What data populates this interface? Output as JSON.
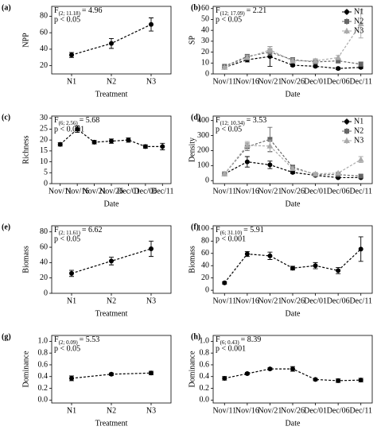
{
  "chart_data": [
    {
      "type": "line",
      "panel": "(a)",
      "ylabel": "NPP",
      "xlabel": "Treatment",
      "annotation": {
        "f": "F",
        "df": "(2; 11.18)",
        "eq": "= 4.96",
        "p": "p < 0.05"
      },
      "categories": [
        "N1",
        "N2",
        "N3"
      ],
      "values": [
        33,
        47,
        70
      ],
      "errors": [
        3,
        6,
        8
      ],
      "color": "#000000",
      "marker": "circle",
      "ylim": [
        10,
        92
      ],
      "yticks": [
        20,
        40,
        60,
        80
      ]
    },
    {
      "type": "line",
      "panel": "(b)",
      "ylabel": "SP",
      "xlabel": "Date",
      "annotation": {
        "f": "F",
        "df": "(12; 17.09)",
        "eq": "= 2.21",
        "p": "p < 0.05"
      },
      "categories": [
        "Nov/11",
        "Nov/16",
        "Nov/21",
        "Nov/26",
        "Dec/01",
        "Dec/06",
        "Dec/11"
      ],
      "series": [
        {
          "name": "N1",
          "color": "#000000",
          "marker": "circle",
          "values": [
            6,
            13,
            16,
            8,
            7,
            5,
            6
          ],
          "errors": [
            1,
            2,
            9,
            1,
            1,
            1,
            1
          ]
        },
        {
          "name": "N2",
          "color": "#666666",
          "marker": "square",
          "values": [
            7,
            16,
            20,
            13,
            11,
            12,
            9
          ],
          "errors": [
            1,
            2,
            3,
            2,
            2,
            2,
            2
          ]
        },
        {
          "name": "N3",
          "color": "#aaaaaa",
          "marker": "triangle",
          "values": [
            6,
            15,
            22,
            12,
            12,
            15,
            46
          ],
          "errors": [
            1,
            2,
            3,
            2,
            2,
            2,
            13
          ]
        }
      ],
      "legend": "upper right",
      "ylim": [
        0,
        62
      ],
      "yticks": [
        0,
        10,
        20,
        30,
        40,
        50,
        60
      ]
    },
    {
      "type": "line",
      "panel": "(c)",
      "ylabel": "Richness",
      "xlabel": "Date",
      "annotation": {
        "f": "F",
        "df": "(6; 2.56)",
        "eq": "= 5.68",
        "p": "p < 0.001"
      },
      "categories": [
        "Nov/11",
        "Nov/16",
        "Nov/21",
        "Nov/26",
        "Dec/01",
        "Dec/06",
        "Dec/11"
      ],
      "values": [
        18,
        25,
        19,
        19.5,
        20,
        17,
        17
      ],
      "errors": [
        0.8,
        1.5,
        0.8,
        1,
        1,
        0.8,
        1.5
      ],
      "color": "#000000",
      "marker": "circle",
      "ylim": [
        0,
        31
      ],
      "yticks": [
        0,
        5,
        10,
        15,
        20,
        25,
        30
      ]
    },
    {
      "type": "line",
      "panel": "(d)",
      "ylabel": "Density",
      "xlabel": "Date",
      "annotation": {
        "f": "F",
        "df": "(12; 10.34)",
        "eq": "= 3.53",
        "p": "p < 0.05"
      },
      "categories": [
        "Nov/11",
        "Nov/16",
        "Nov/21",
        "Nov/26",
        "Dec/01",
        "Dec/06",
        "Dec/11"
      ],
      "series": [
        {
          "name": "N1",
          "color": "#000000",
          "marker": "circle",
          "values": [
            45,
            125,
            105,
            55,
            35,
            20,
            20
          ],
          "errors": [
            8,
            35,
            25,
            8,
            6,
            5,
            5
          ]
        },
        {
          "name": "N2",
          "color": "#666666",
          "marker": "square",
          "values": [
            45,
            225,
            275,
            90,
            40,
            40,
            30
          ],
          "errors": [
            8,
            25,
            80,
            12,
            8,
            8,
            8
          ]
        },
        {
          "name": "N3",
          "color": "#aaaaaa",
          "marker": "triangle",
          "values": [
            45,
            235,
            230,
            80,
            45,
            50,
            140
          ],
          "errors": [
            8,
            25,
            40,
            12,
            8,
            8,
            20
          ]
        }
      ],
      "legend": "upper right",
      "ylim": [
        -20,
        430
      ],
      "yticks": [
        0,
        100,
        200,
        300,
        400
      ]
    },
    {
      "type": "line",
      "panel": "(e)",
      "ylabel": "Biomass",
      "xlabel": "Treatment",
      "annotation": {
        "f": "F",
        "df": "(2; 11.61)",
        "eq": "= 6.62",
        "p": "p < 0.05"
      },
      "categories": [
        "N1",
        "N2",
        "N3"
      ],
      "values": [
        26,
        42,
        58
      ],
      "errors": [
        4,
        5,
        10
      ],
      "color": "#000000",
      "marker": "circle",
      "ylim": [
        0,
        88
      ],
      "yticks": [
        0,
        20,
        40,
        60,
        80
      ]
    },
    {
      "type": "line",
      "panel": "(f)",
      "ylabel": "Biomass",
      "xlabel": "Date",
      "annotation": {
        "f": "F",
        "df": "(6; 31.10)",
        "eq": "= 5.91",
        "p": "p < 0.001"
      },
      "categories": [
        "Nov/11",
        "Nov/16",
        "Nov/21",
        "Nov/26",
        "Dec/01",
        "Dec/06",
        "Dec/11"
      ],
      "values": [
        12,
        59,
        56,
        36,
        40,
        32,
        67
      ],
      "errors": [
        2,
        4,
        6,
        3,
        5,
        5,
        20
      ],
      "color": "#000000",
      "marker": "circle",
      "ylim": [
        -5,
        105
      ],
      "yticks": [
        0,
        20,
        40,
        60,
        80,
        100
      ]
    },
    {
      "type": "line",
      "panel": "(g)",
      "ylabel": "Dominance",
      "xlabel": "Treatment",
      "annotation": {
        "f": "F",
        "df": "(2; 0.09)",
        "eq": "= 5.53",
        "p": "p < 0.05"
      },
      "categories": [
        "N1",
        "N2",
        "N3"
      ],
      "values": [
        0.37,
        0.44,
        0.46
      ],
      "errors": [
        0.04,
        0.02,
        0.03
      ],
      "color": "#000000",
      "marker": "circle",
      "ylim": [
        -0.05,
        1.1
      ],
      "yticks": [
        {
          "value": 0,
          "label": "0.0"
        },
        0.2,
        0.4,
        0.6,
        0.8,
        {
          "value": 1,
          "label": "1.0"
        }
      ]
    },
    {
      "type": "line",
      "panel": "(h)",
      "ylabel": "Dominance",
      "xlabel": "Date",
      "annotation": {
        "f": "F",
        "df": "(6; 0.43)",
        "eq": "= 8.39",
        "p": "p < 0.001"
      },
      "categories": [
        "Nov/11",
        "Nov/16",
        "Nov/21",
        "Nov/26",
        "Dec/01",
        "Dec/06",
        "Dec/11"
      ],
      "values": [
        0.37,
        0.45,
        0.53,
        0.53,
        0.35,
        0.33,
        0.34
      ],
      "errors": [
        0.03,
        0.02,
        0.02,
        0.04,
        0.02,
        0.03,
        0.03
      ],
      "color": "#000000",
      "marker": "circle",
      "ylim": [
        -0.05,
        1.1
      ],
      "yticks": [
        {
          "value": 0,
          "label": "0.0"
        },
        0.2,
        0.4,
        0.6,
        0.8,
        {
          "value": 1,
          "label": "1.0"
        }
      ]
    }
  ]
}
